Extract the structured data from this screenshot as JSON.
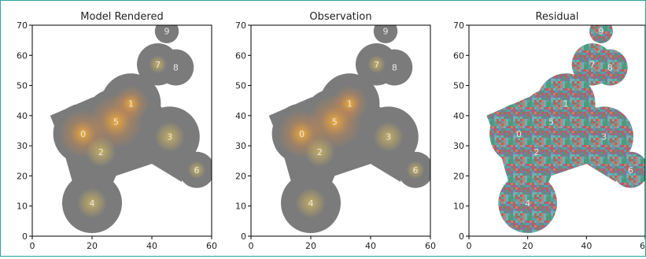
{
  "chart_data": [
    {
      "type": "image",
      "title": "Model Rendered",
      "xlim": [
        0,
        60
      ],
      "ylim": [
        0,
        70
      ],
      "xticks": [
        0,
        20,
        40,
        60
      ],
      "yticks": [
        0,
        10,
        20,
        30,
        40,
        50,
        60,
        70
      ],
      "grid": false,
      "sources": [
        {
          "label": "0",
          "x": 17,
          "y": 34
        },
        {
          "label": "1",
          "x": 33,
          "y": 44
        },
        {
          "label": "2",
          "x": 23,
          "y": 28
        },
        {
          "label": "3",
          "x": 46,
          "y": 33
        },
        {
          "label": "4",
          "x": 20,
          "y": 11
        },
        {
          "label": "5",
          "x": 28,
          "y": 38
        },
        {
          "label": "6",
          "x": 55,
          "y": 22
        },
        {
          "label": "7",
          "x": 42,
          "y": 57
        },
        {
          "label": "8",
          "x": 48,
          "y": 56
        },
        {
          "label": "9",
          "x": 45,
          "y": 68
        }
      ]
    },
    {
      "type": "image",
      "title": "Observation",
      "xlim": [
        0,
        60
      ],
      "ylim": [
        0,
        70
      ],
      "xticks": [
        0,
        20,
        40,
        60
      ],
      "yticks": [
        0,
        10,
        20,
        30,
        40,
        50,
        60,
        70
      ],
      "grid": false,
      "sources": [
        {
          "label": "0",
          "x": 17,
          "y": 34
        },
        {
          "label": "1",
          "x": 33,
          "y": 44
        },
        {
          "label": "2",
          "x": 23,
          "y": 28
        },
        {
          "label": "3",
          "x": 46,
          "y": 33
        },
        {
          "label": "4",
          "x": 20,
          "y": 11
        },
        {
          "label": "5",
          "x": 28,
          "y": 38
        },
        {
          "label": "6",
          "x": 55,
          "y": 22
        },
        {
          "label": "7",
          "x": 42,
          "y": 57
        },
        {
          "label": "8",
          "x": 48,
          "y": 56
        },
        {
          "label": "9",
          "x": 45,
          "y": 68
        }
      ]
    },
    {
      "type": "image",
      "title": "Residual",
      "xlim": [
        0,
        60
      ],
      "ylim": [
        0,
        70
      ],
      "xticks": [
        0,
        20,
        40,
        60
      ],
      "yticks": [
        0,
        10,
        20,
        30,
        40,
        50,
        60,
        70
      ],
      "grid": false,
      "sources": [
        {
          "label": "0",
          "x": 17,
          "y": 34
        },
        {
          "label": "1",
          "x": 33,
          "y": 44
        },
        {
          "label": "2",
          "x": 23,
          "y": 28
        },
        {
          "label": "3",
          "x": 46,
          "y": 33
        },
        {
          "label": "4",
          "x": 20,
          "y": 11
        },
        {
          "label": "5",
          "x": 28,
          "y": 38
        },
        {
          "label": "6",
          "x": 55,
          "y": 22
        },
        {
          "label": "7",
          "x": 42,
          "y": 57
        },
        {
          "label": "8",
          "x": 48,
          "y": 56
        },
        {
          "label": "9",
          "x": 45,
          "y": 68
        }
      ]
    }
  ],
  "colors": {
    "background": "#7b7b7b",
    "frame": "#2aa3a3",
    "label": "#e8e8e8",
    "glow_core": "#f2b13a",
    "glow_warm": "#d98a44",
    "residual_palette": [
      "#c45b55",
      "#4f9a7a",
      "#5aa0a2",
      "#b8847c",
      "#8a6f9e",
      "#6fb0b0",
      "#a56b62"
    ]
  }
}
